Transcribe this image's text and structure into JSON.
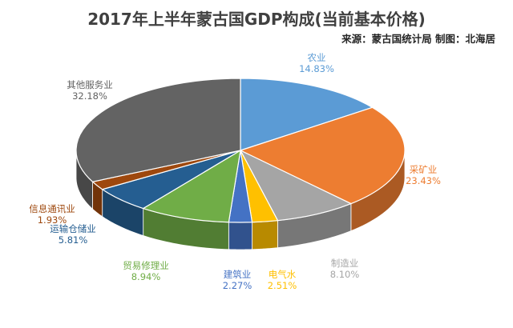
{
  "chart_data": {
    "type": "pie",
    "title": "2017年上半年蒙古国GDP构成(当前基本价格)",
    "source": "来源：蒙古国统计局  制图：北海居",
    "slices": [
      {
        "name": "农业",
        "value": 14.83,
        "label": "14.83%",
        "color": "#5b9bd5"
      },
      {
        "name": "采矿业",
        "value": 23.43,
        "label": "23.43%",
        "color": "#ed7d31"
      },
      {
        "name": "制造业",
        "value": 8.1,
        "label": "8.10%",
        "color": "#a5a5a5"
      },
      {
        "name": "电气水",
        "value": 2.51,
        "label": "2.51%",
        "color": "#ffc000"
      },
      {
        "name": "建筑业",
        "value": 2.27,
        "label": "2.27%",
        "color": "#4472c4"
      },
      {
        "name": "贸易修理业",
        "value": 8.94,
        "label": "8.94%",
        "color": "#70ad47"
      },
      {
        "name": "运输仓储业",
        "value": 5.81,
        "label": "5.81%",
        "color": "#255e91"
      },
      {
        "name": "信息通讯业",
        "value": 1.93,
        "label": "1.93%",
        "color": "#9e480e"
      },
      {
        "name": "其他服务业",
        "value": 32.18,
        "label": "32.18%",
        "color": "#636363"
      }
    ]
  }
}
